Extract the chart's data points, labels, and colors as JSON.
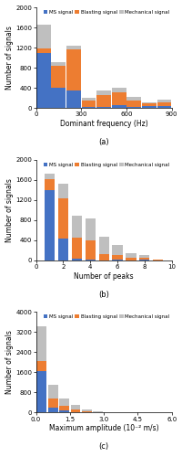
{
  "subplot_a": {
    "xlabel": "Dominant frequency (Hz)",
    "ylabel": "Number of signals",
    "xlim": [
      0,
      900
    ],
    "ylim": [
      0,
      2000
    ],
    "yticks": [
      0,
      400,
      800,
      1200,
      1600,
      2000
    ],
    "xticks": [
      0,
      300,
      600,
      900
    ],
    "bin_edges": [
      0,
      100,
      200,
      300,
      400,
      500,
      600,
      700,
      800,
      900
    ],
    "bin_width": 95,
    "ms": [
      1100,
      400,
      350,
      20,
      20,
      50,
      20,
      30,
      30
    ],
    "blasting": [
      80,
      430,
      810,
      120,
      240,
      260,
      120,
      60,
      90
    ],
    "mechanical": [
      480,
      80,
      80,
      70,
      80,
      100,
      80,
      30,
      40
    ]
  },
  "subplot_b": {
    "xlabel": "Number of peaks",
    "ylabel": "Number of signals",
    "xlim": [
      0,
      10
    ],
    "ylim": [
      0,
      2000
    ],
    "yticks": [
      0,
      400,
      800,
      1200,
      1600,
      2000
    ],
    "xticks": [
      0,
      2,
      4,
      6,
      8,
      10
    ],
    "bin_centers": [
      1,
      2,
      3,
      4,
      5,
      6,
      7,
      8,
      9
    ],
    "bin_width": 0.75,
    "ms": [
      1400,
      440,
      25,
      20,
      5,
      10,
      5,
      10,
      2
    ],
    "blasting": [
      210,
      790,
      430,
      370,
      120,
      100,
      40,
      50,
      5
    ],
    "mechanical": [
      110,
      290,
      430,
      440,
      350,
      200,
      90,
      40,
      5
    ]
  },
  "subplot_c": {
    "xlabel": "Maximum amplitude (10⁻² m/s)",
    "ylabel": "Number of signals",
    "xlim": [
      0,
      6.0
    ],
    "ylim": [
      0,
      4000
    ],
    "yticks": [
      0,
      800,
      1600,
      2400,
      3200,
      4000
    ],
    "xticks": [
      0,
      1.5,
      3.0,
      4.5,
      6.0
    ],
    "bin_centers": [
      0.25,
      0.75,
      1.25,
      1.75,
      2.25,
      2.75,
      3.25,
      3.75,
      4.25,
      4.75,
      5.25,
      5.75
    ],
    "bin_width": 0.44,
    "ms": [
      1650,
      200,
      80,
      30,
      10,
      5,
      3,
      2,
      1,
      1,
      0,
      0
    ],
    "blasting": [
      400,
      350,
      200,
      100,
      50,
      25,
      10,
      5,
      3,
      2,
      1,
      1
    ],
    "mechanical": [
      1400,
      550,
      280,
      160,
      60,
      25,
      10,
      5,
      2,
      1,
      1,
      0
    ]
  },
  "colors": {
    "ms": "#4472C4",
    "blasting": "#ED7D31",
    "mechanical": "#BFBFBF"
  },
  "legend_labels": [
    "MS signal",
    "Blasting signal",
    "Mechanical signal"
  ],
  "subplot_labels": [
    "(a)",
    "(b)",
    "(c)"
  ]
}
